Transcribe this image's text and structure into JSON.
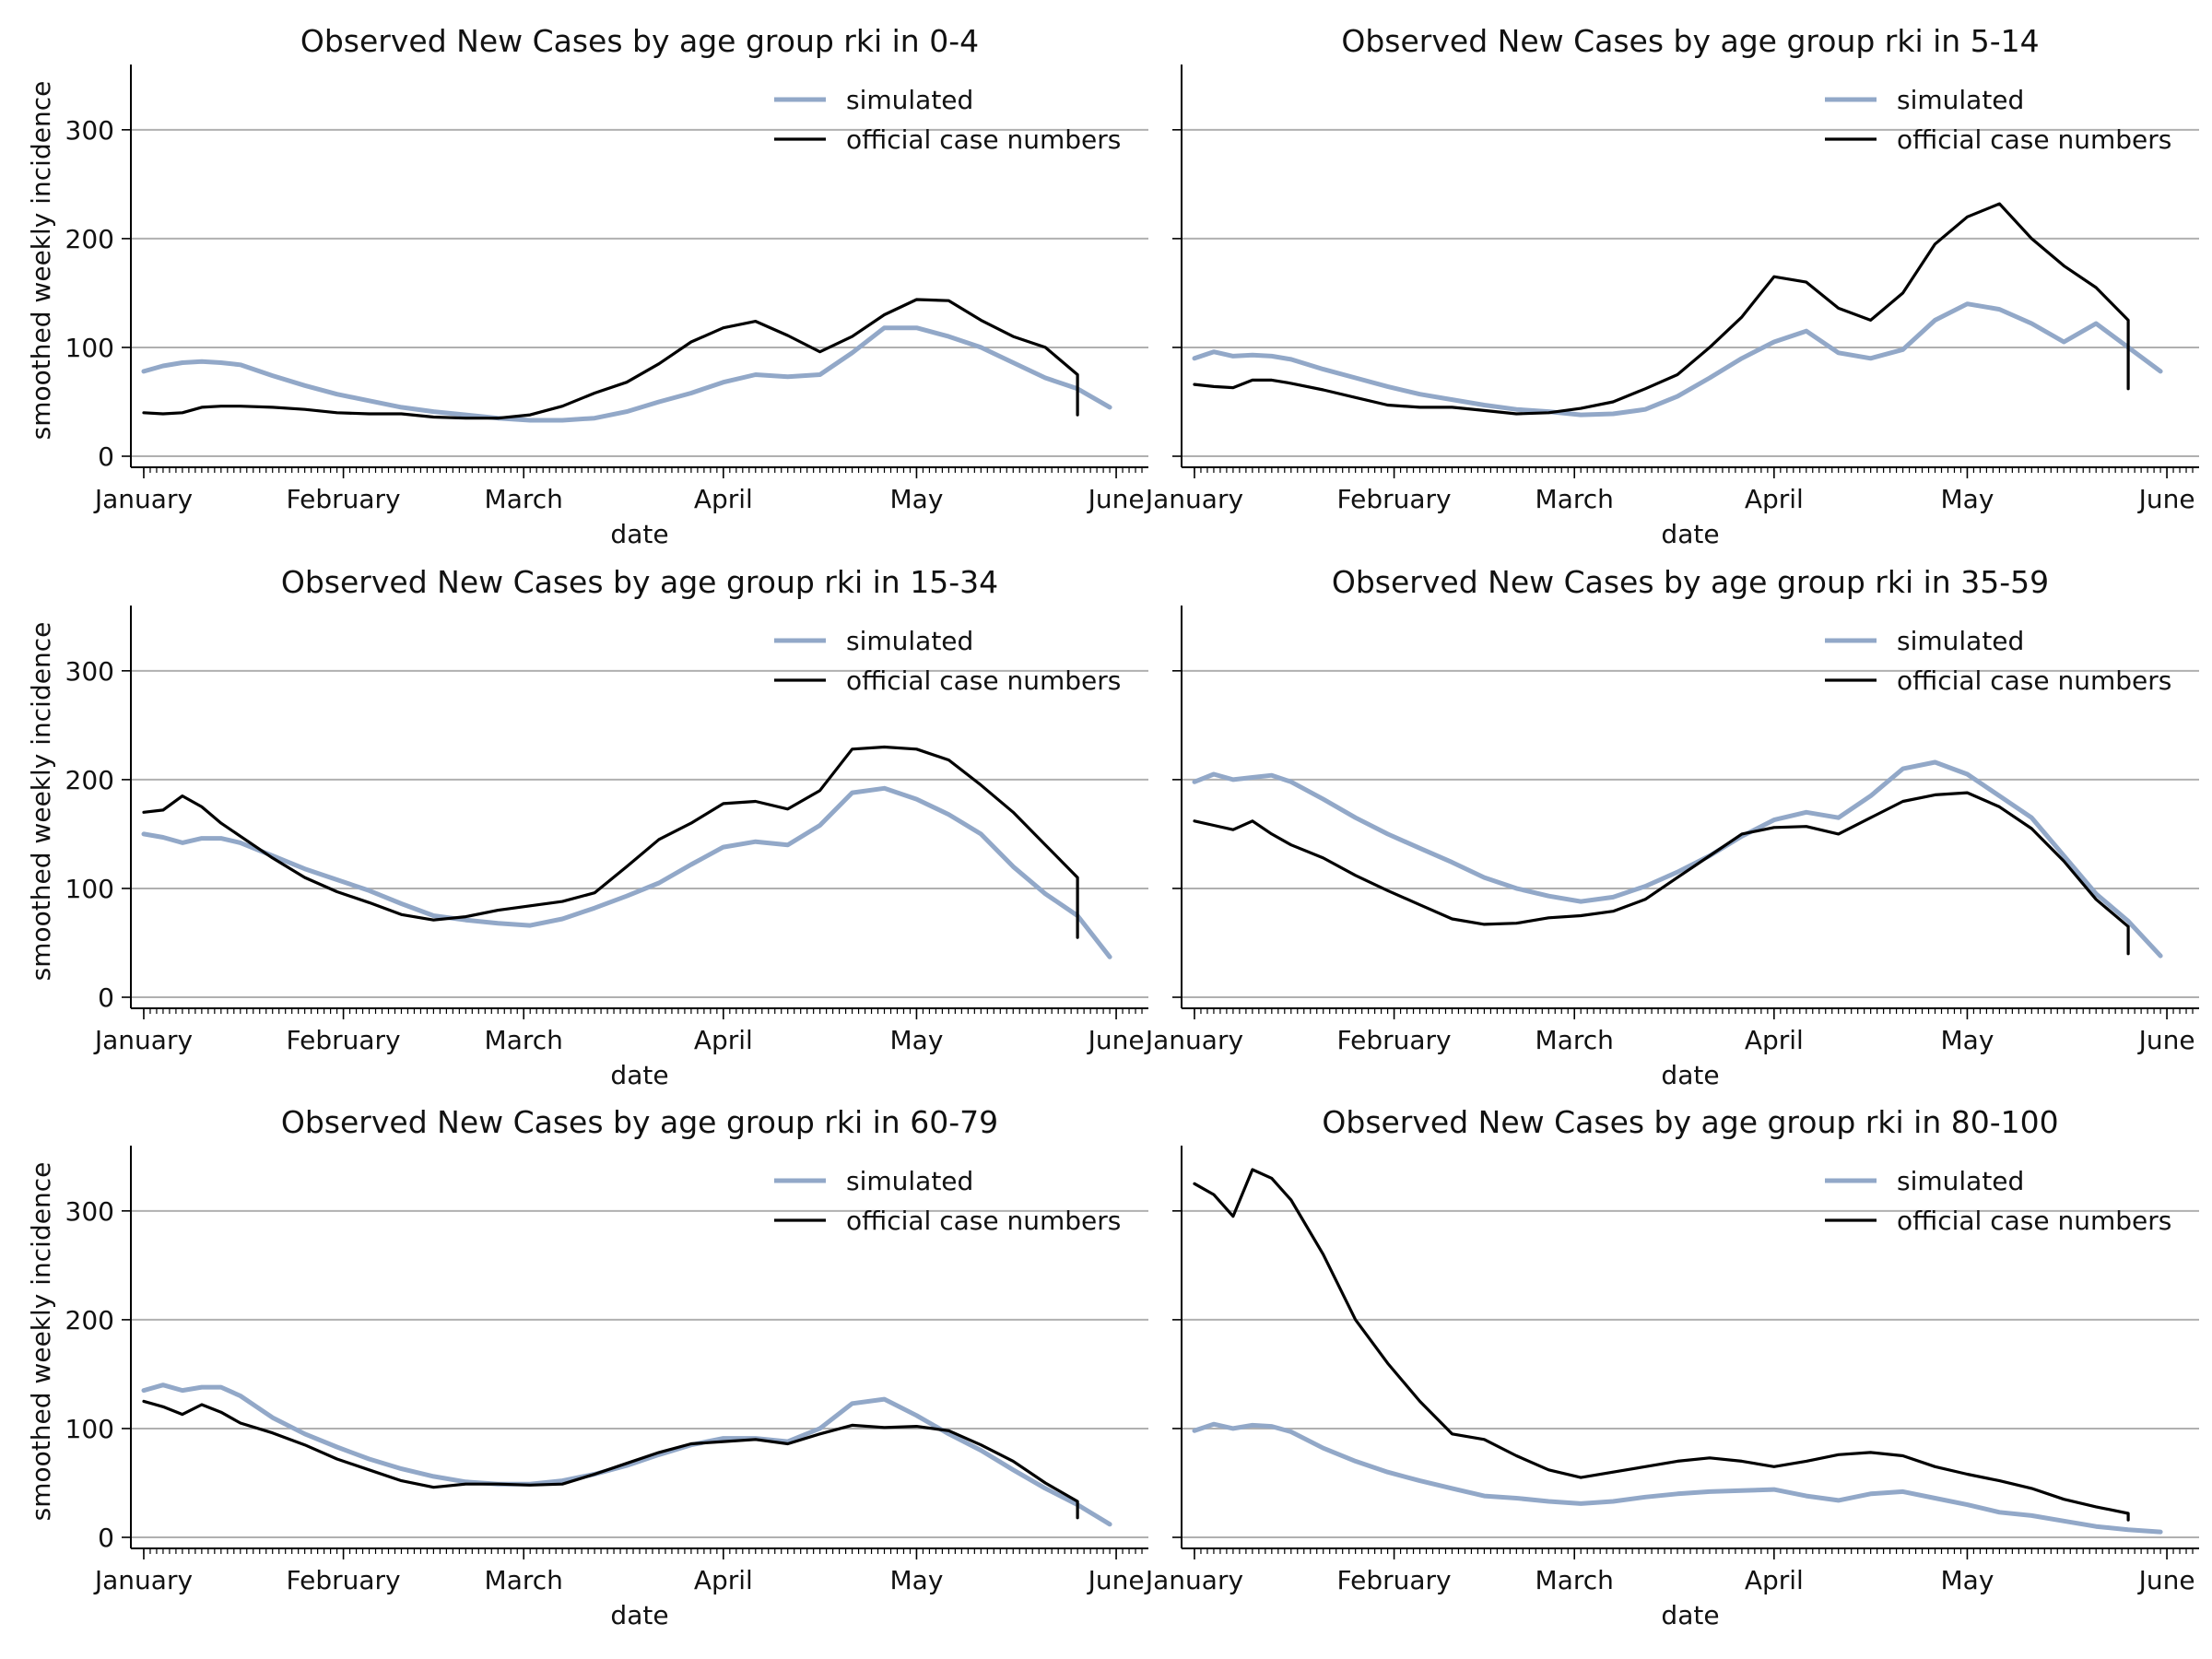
{
  "chart_data": [
    {
      "type": "line",
      "title": "Observed New Cases by age group rki in 0-4",
      "xlabel": "date",
      "ylabel": "smoothed weekly incidence",
      "ylim": [
        0,
        360
      ],
      "yticks": [
        "0",
        "100",
        "200",
        "300"
      ],
      "xticks": [
        "January",
        "February",
        "March",
        "April",
        "May",
        "June"
      ],
      "grid": "horizontal",
      "legend": "top-right",
      "series": [
        {
          "name": "simulated",
          "color": "#92a8c8",
          "x": [
            0,
            3,
            6,
            9,
            12,
            15,
            20,
            25,
            30,
            35,
            40,
            45,
            50,
            55,
            60,
            65,
            70,
            75,
            80,
            85,
            90,
            95,
            100,
            105,
            110,
            115,
            120,
            125,
            130,
            135,
            140,
            145,
            150
          ],
          "y": [
            78,
            83,
            86,
            87,
            86,
            84,
            74,
            65,
            57,
            51,
            45,
            41,
            38,
            35,
            33,
            33,
            35,
            41,
            50,
            58,
            68,
            75,
            73,
            75,
            95,
            118,
            118,
            110,
            100,
            86,
            72,
            62,
            45
          ]
        },
        {
          "name": "official case numbers",
          "color": "#000000",
          "x": [
            0,
            3,
            6,
            9,
            12,
            15,
            20,
            25,
            30,
            35,
            40,
            45,
            50,
            55,
            60,
            65,
            70,
            75,
            80,
            85,
            90,
            95,
            100,
            105,
            110,
            115,
            120,
            125,
            130,
            135,
            140,
            145,
            145
          ],
          "y": [
            40,
            39,
            40,
            45,
            46,
            46,
            45,
            43,
            40,
            39,
            39,
            36,
            35,
            35,
            38,
            46,
            58,
            68,
            85,
            105,
            118,
            124,
            111,
            96,
            110,
            130,
            144,
            143,
            125,
            110,
            100,
            75,
            38
          ]
        }
      ]
    },
    {
      "type": "line",
      "title": "Observed New Cases by age group rki in 5-14",
      "xlabel": "date",
      "ylabel": "",
      "ylim": [
        0,
        360
      ],
      "yticks": [
        "0",
        "100",
        "200",
        "300"
      ],
      "xticks": [
        "January",
        "February",
        "March",
        "April",
        "May",
        "June"
      ],
      "grid": "horizontal",
      "legend": "top-right",
      "series": [
        {
          "name": "simulated",
          "color": "#92a8c8",
          "x": [
            0,
            3,
            6,
            9,
            12,
            15,
            20,
            25,
            30,
            35,
            40,
            45,
            50,
            55,
            60,
            65,
            70,
            75,
            80,
            85,
            90,
            95,
            100,
            105,
            110,
            115,
            120,
            125,
            130,
            135,
            140,
            145,
            150
          ],
          "y": [
            90,
            96,
            92,
            93,
            92,
            89,
            80,
            72,
            64,
            57,
            52,
            47,
            43,
            41,
            38,
            39,
            43,
            55,
            72,
            90,
            105,
            115,
            95,
            90,
            98,
            125,
            140,
            135,
            122,
            105,
            122,
            100,
            78
          ]
        },
        {
          "name": "official case numbers",
          "color": "#000000",
          "x": [
            0,
            3,
            6,
            9,
            12,
            15,
            20,
            25,
            30,
            35,
            40,
            45,
            50,
            55,
            60,
            65,
            70,
            75,
            80,
            85,
            90,
            95,
            100,
            105,
            110,
            115,
            120,
            125,
            130,
            135,
            140,
            145,
            145
          ],
          "y": [
            66,
            64,
            63,
            70,
            70,
            67,
            61,
            54,
            47,
            45,
            45,
            42,
            39,
            40,
            44,
            50,
            62,
            75,
            100,
            128,
            165,
            160,
            136,
            125,
            150,
            195,
            220,
            232,
            200,
            175,
            155,
            125,
            62
          ]
        }
      ]
    },
    {
      "type": "line",
      "title": "Observed New Cases by age group rki in 15-34",
      "xlabel": "date",
      "ylabel": "smoothed weekly incidence",
      "ylim": [
        0,
        360
      ],
      "yticks": [
        "0",
        "100",
        "200",
        "300"
      ],
      "xticks": [
        "January",
        "February",
        "March",
        "April",
        "May",
        "June"
      ],
      "grid": "horizontal",
      "legend": "top-right",
      "series": [
        {
          "name": "simulated",
          "color": "#92a8c8",
          "x": [
            0,
            3,
            6,
            9,
            12,
            15,
            20,
            25,
            30,
            35,
            40,
            45,
            50,
            55,
            60,
            65,
            70,
            75,
            80,
            85,
            90,
            95,
            100,
            105,
            110,
            115,
            120,
            125,
            130,
            135,
            140,
            145,
            150
          ],
          "y": [
            150,
            147,
            142,
            146,
            146,
            142,
            130,
            118,
            108,
            98,
            86,
            75,
            71,
            68,
            66,
            72,
            82,
            93,
            105,
            122,
            138,
            143,
            140,
            158,
            188,
            192,
            182,
            168,
            150,
            120,
            95,
            75,
            37
          ]
        },
        {
          "name": "official case numbers",
          "color": "#000000",
          "x": [
            0,
            3,
            6,
            9,
            12,
            15,
            20,
            25,
            30,
            35,
            40,
            45,
            50,
            55,
            60,
            65,
            70,
            75,
            80,
            85,
            90,
            95,
            100,
            105,
            110,
            115,
            120,
            125,
            130,
            135,
            140,
            145,
            145
          ],
          "y": [
            170,
            172,
            185,
            175,
            160,
            148,
            128,
            110,
            97,
            87,
            76,
            71,
            74,
            80,
            84,
            88,
            96,
            120,
            145,
            160,
            178,
            180,
            173,
            190,
            228,
            230,
            228,
            218,
            195,
            170,
            140,
            110,
            55
          ]
        }
      ]
    },
    {
      "type": "line",
      "title": "Observed New Cases by age group rki in 35-59",
      "xlabel": "date",
      "ylabel": "",
      "ylim": [
        0,
        360
      ],
      "yticks": [
        "0",
        "100",
        "200",
        "300"
      ],
      "xticks": [
        "January",
        "February",
        "March",
        "April",
        "May",
        "June"
      ],
      "grid": "horizontal",
      "legend": "top-right",
      "series": [
        {
          "name": "simulated",
          "color": "#92a8c8",
          "x": [
            0,
            3,
            6,
            9,
            12,
            15,
            20,
            25,
            30,
            35,
            40,
            45,
            50,
            55,
            60,
            65,
            70,
            75,
            80,
            85,
            90,
            95,
            100,
            105,
            110,
            115,
            120,
            125,
            130,
            135,
            140,
            145,
            150
          ],
          "y": [
            198,
            205,
            200,
            202,
            204,
            198,
            182,
            165,
            150,
            137,
            124,
            110,
            100,
            93,
            88,
            92,
            102,
            115,
            130,
            148,
            163,
            170,
            165,
            185,
            210,
            216,
            205,
            185,
            165,
            130,
            95,
            70,
            38
          ]
        },
        {
          "name": "official case numbers",
          "color": "#000000",
          "x": [
            0,
            3,
            6,
            9,
            12,
            15,
            20,
            25,
            30,
            35,
            40,
            45,
            50,
            55,
            60,
            65,
            70,
            75,
            80,
            85,
            90,
            95,
            100,
            105,
            110,
            115,
            120,
            125,
            130,
            135,
            140,
            145,
            145
          ],
          "y": [
            162,
            158,
            154,
            162,
            150,
            140,
            128,
            112,
            98,
            85,
            72,
            67,
            68,
            73,
            75,
            79,
            90,
            110,
            130,
            150,
            156,
            157,
            150,
            165,
            180,
            186,
            188,
            175,
            155,
            125,
            90,
            65,
            40
          ]
        }
      ]
    },
    {
      "type": "line",
      "title": "Observed New Cases by age group rki in 60-79",
      "xlabel": "date",
      "ylabel": "smoothed weekly incidence",
      "ylim": [
        0,
        360
      ],
      "yticks": [
        "0",
        "100",
        "200",
        "300"
      ],
      "xticks": [
        "January",
        "February",
        "March",
        "April",
        "May",
        "June"
      ],
      "grid": "horizontal",
      "legend": "top-right",
      "series": [
        {
          "name": "simulated",
          "color": "#92a8c8",
          "x": [
            0,
            3,
            6,
            9,
            12,
            15,
            20,
            25,
            30,
            35,
            40,
            45,
            50,
            55,
            60,
            65,
            70,
            75,
            80,
            85,
            90,
            95,
            100,
            105,
            110,
            115,
            120,
            125,
            130,
            135,
            140,
            145,
            150
          ],
          "y": [
            135,
            140,
            135,
            138,
            138,
            130,
            110,
            95,
            83,
            72,
            63,
            56,
            51,
            49,
            49,
            52,
            58,
            66,
            76,
            85,
            91,
            91,
            88,
            100,
            123,
            127,
            112,
            95,
            80,
            62,
            45,
            30,
            12
          ]
        },
        {
          "name": "official case numbers",
          "color": "#000000",
          "x": [
            0,
            3,
            6,
            9,
            12,
            15,
            20,
            25,
            30,
            35,
            40,
            45,
            50,
            55,
            60,
            65,
            70,
            75,
            80,
            85,
            90,
            95,
            100,
            105,
            110,
            115,
            120,
            125,
            130,
            135,
            140,
            145,
            145
          ],
          "y": [
            125,
            120,
            113,
            122,
            115,
            105,
            96,
            85,
            72,
            62,
            52,
            46,
            49,
            49,
            48,
            49,
            58,
            68,
            78,
            86,
            88,
            90,
            86,
            95,
            103,
            101,
            102,
            98,
            85,
            70,
            50,
            33,
            18
          ]
        }
      ]
    },
    {
      "type": "line",
      "title": "Observed New Cases by age group rki in 80-100",
      "xlabel": "date",
      "ylabel": "",
      "ylim": [
        0,
        360
      ],
      "yticks": [
        "0",
        "100",
        "200",
        "300"
      ],
      "xticks": [
        "January",
        "February",
        "March",
        "April",
        "May",
        "June"
      ],
      "grid": "horizontal",
      "legend": "top-right",
      "series": [
        {
          "name": "simulated",
          "color": "#92a8c8",
          "x": [
            0,
            3,
            6,
            9,
            12,
            15,
            20,
            25,
            30,
            35,
            40,
            45,
            50,
            55,
            60,
            65,
            70,
            75,
            80,
            85,
            90,
            95,
            100,
            105,
            110,
            115,
            120,
            125,
            130,
            135,
            140,
            145,
            150
          ],
          "y": [
            98,
            104,
            100,
            103,
            102,
            97,
            82,
            70,
            60,
            52,
            45,
            38,
            36,
            33,
            31,
            33,
            37,
            40,
            42,
            43,
            44,
            38,
            34,
            40,
            42,
            36,
            30,
            23,
            20,
            15,
            10,
            7,
            5
          ]
        },
        {
          "name": "official case numbers",
          "color": "#000000",
          "x": [
            0,
            3,
            6,
            9,
            12,
            15,
            20,
            25,
            30,
            35,
            40,
            45,
            50,
            55,
            60,
            65,
            70,
            75,
            80,
            85,
            90,
            95,
            100,
            105,
            110,
            115,
            120,
            125,
            130,
            135,
            140,
            145,
            145
          ],
          "y": [
            325,
            315,
            295,
            338,
            330,
            310,
            260,
            200,
            160,
            125,
            95,
            90,
            75,
            62,
            55,
            60,
            65,
            70,
            73,
            70,
            65,
            70,
            76,
            78,
            75,
            65,
            58,
            52,
            45,
            35,
            28,
            22,
            16
          ]
        }
      ]
    }
  ]
}
